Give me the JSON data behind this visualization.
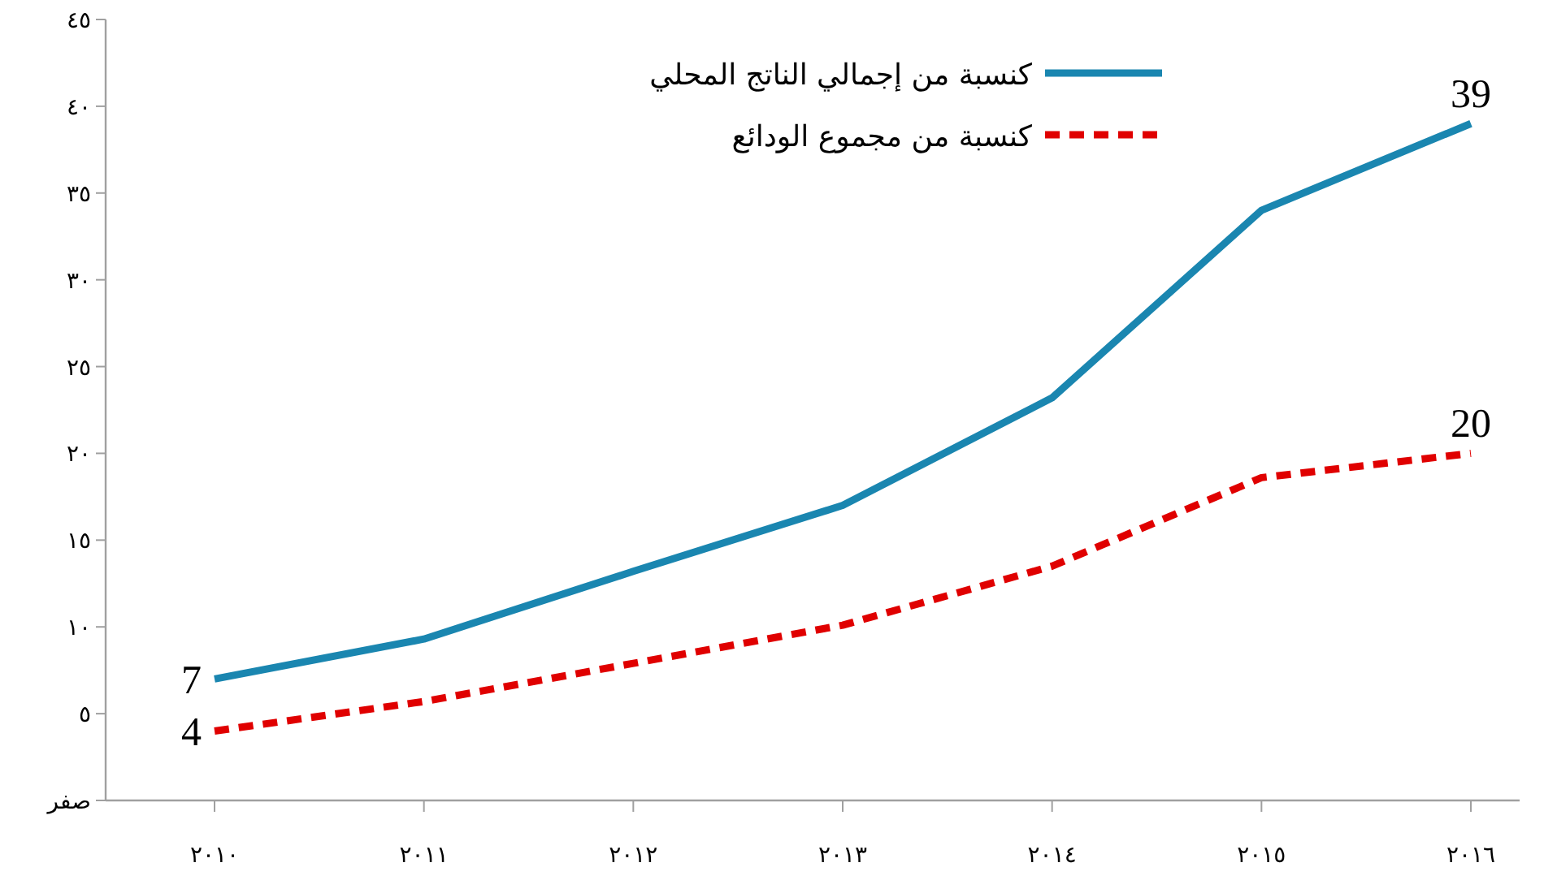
{
  "chart_data": {
    "type": "line",
    "categories": [
      "٢٠١٠",
      "٢٠١١",
      "٢٠١٢",
      "٢٠١٣",
      "٢٠١٤",
      "٢٠١٥",
      "٢٠١٦"
    ],
    "series": [
      {
        "name": "كنسبة من إجمالي الناتج المحلي",
        "color": "#1a86b0",
        "line_style": "solid",
        "values": [
          7,
          9.3,
          13.2,
          17,
          23.2,
          34,
          39
        ],
        "value_labels": [
          "7",
          null,
          null,
          null,
          null,
          null,
          "39"
        ]
      },
      {
        "name": "كنسبة من مجموع الودائع",
        "color": "#e00000",
        "line_style": "dashed",
        "values": [
          4,
          5.7,
          7.9,
          10.1,
          13.5,
          18.6,
          20
        ],
        "value_labels": [
          "4",
          null,
          null,
          null,
          null,
          null,
          "20"
        ]
      }
    ],
    "ylim": [
      0,
      45
    ],
    "yticks": [
      {
        "value": 0,
        "label": "صفر"
      },
      {
        "value": 5,
        "label": "٥"
      },
      {
        "value": 10,
        "label": "١٠"
      },
      {
        "value": 15,
        "label": "١٥"
      },
      {
        "value": 20,
        "label": "٢٠"
      },
      {
        "value": 25,
        "label": "٢٥"
      },
      {
        "value": 30,
        "label": "٣٠"
      },
      {
        "value": 35,
        "label": "٣٥"
      },
      {
        "value": 40,
        "label": "٤٠"
      },
      {
        "value": 45,
        "label": "٤٥"
      }
    ],
    "grid": false,
    "legend": "top",
    "marker": "none"
  }
}
